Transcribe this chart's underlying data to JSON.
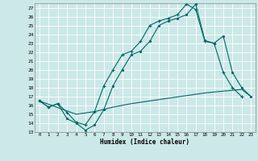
{
  "xlabel": "Humidex (Indice chaleur)",
  "bg_color": "#cce8e8",
  "grid_color": "#ffffff",
  "line_color": "#006666",
  "xlim": [
    -0.5,
    23.5
  ],
  "ylim": [
    13,
    27.5
  ],
  "xticks": [
    0,
    1,
    2,
    3,
    4,
    5,
    6,
    7,
    8,
    9,
    10,
    11,
    12,
    13,
    14,
    15,
    16,
    17,
    18,
    19,
    20,
    21,
    22,
    23
  ],
  "yticks": [
    13,
    14,
    15,
    16,
    17,
    18,
    19,
    20,
    21,
    22,
    23,
    24,
    25,
    26,
    27
  ],
  "line1_x": [
    0,
    1,
    2,
    3,
    4,
    5,
    6,
    7,
    8,
    9,
    10,
    11,
    12,
    13,
    14,
    15,
    16,
    17,
    18,
    19,
    20,
    21,
    22
  ],
  "line1_y": [
    16.5,
    15.8,
    16.2,
    15.2,
    14.1,
    13.8,
    15.3,
    18.2,
    20.0,
    21.7,
    22.1,
    23.2,
    25.0,
    25.5,
    25.8,
    26.2,
    27.4,
    26.8,
    23.2,
    23.0,
    19.7,
    18.0,
    17.0
  ],
  "line2_x": [
    0,
    1,
    2,
    3,
    4,
    5,
    6,
    7,
    8,
    9,
    10,
    11,
    12,
    13,
    14,
    15,
    16,
    17,
    18,
    19,
    20,
    21,
    22,
    23
  ],
  "line2_y": [
    16.5,
    15.8,
    16.2,
    14.5,
    14.0,
    13.2,
    13.8,
    15.5,
    18.2,
    20.0,
    21.7,
    22.1,
    23.2,
    25.0,
    25.5,
    25.8,
    26.2,
    27.4,
    23.3,
    23.0,
    23.8,
    19.7,
    18.0,
    17.0
  ],
  "line3_x": [
    0,
    4,
    6,
    8,
    10,
    12,
    14,
    16,
    18,
    20,
    22,
    23
  ],
  "line3_y": [
    16.5,
    15.0,
    15.3,
    15.8,
    16.2,
    16.5,
    16.8,
    17.1,
    17.4,
    17.6,
    17.8,
    17.0
  ]
}
